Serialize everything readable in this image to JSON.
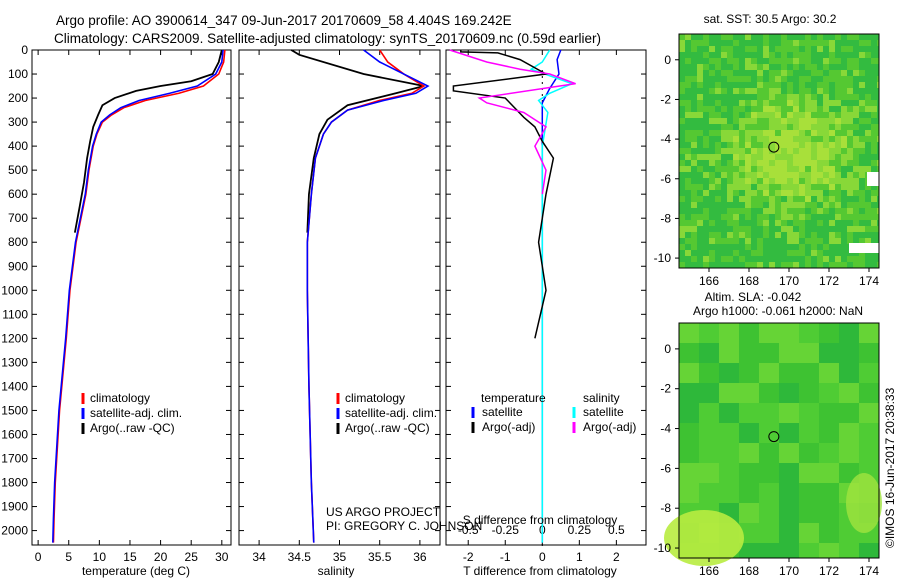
{
  "header": {
    "line1": "Argo profile: AO 3900614_347 09-Jun-2017 20170609_58 4.404S 169.242E",
    "line2": "Climatology: CARS2009. Satellite-adjusted climatology: synTS_20170609.nc (0.59d earlier)"
  },
  "colors": {
    "climatology": "#ff0000",
    "satellite": "#0000ff",
    "argo": "#000000",
    "sat_salinity": "#00ffff",
    "argo_salinity": "#ff00ff"
  },
  "chart_data": [
    {
      "type": "line",
      "name": "temperature-profile",
      "xlabel": "temperature (deg C)",
      "xlim": [
        -1,
        31.5
      ],
      "ylim": [
        2060,
        0
      ],
      "invert_y": true,
      "xticks": [
        "0",
        "5",
        "10",
        "15",
        "20",
        "25",
        "30"
      ],
      "yticks": [
        "0",
        "100",
        "200",
        "300",
        "400",
        "500",
        "600",
        "700",
        "800",
        "900",
        "1000",
        "1100",
        "1200",
        "1300",
        "1400",
        "1500",
        "1600",
        "1700",
        "1800",
        "1900",
        "2000"
      ],
      "legend": [
        "climatology",
        "satellite-adj. clim.",
        "Argo(..raw -QC)"
      ],
      "series": [
        {
          "name": "climatology",
          "x": [
            30.5,
            30.3,
            29.5,
            27,
            23,
            17.5,
            14,
            12,
            10.5,
            9.6,
            9,
            8.3,
            7.8,
            7,
            6.2,
            5.2,
            4.6,
            3.5,
            2.8,
            2.6,
            2.5
          ],
          "y": [
            0,
            50,
            100,
            150,
            180,
            210,
            240,
            270,
            300,
            350,
            400,
            500,
            600,
            700,
            800,
            1000,
            1200,
            1500,
            1800,
            1950,
            2050
          ]
        },
        {
          "name": "satellite-adj. clim.",
          "x": [
            30.2,
            30,
            29,
            26,
            21.5,
            16.5,
            13.5,
            11.7,
            10.3,
            9.5,
            8.9,
            8.2,
            7.7,
            6.9,
            6.1,
            5.1,
            4.5,
            3.4,
            2.7,
            2.5,
            2.4
          ],
          "y": [
            0,
            50,
            100,
            150,
            180,
            210,
            240,
            270,
            300,
            350,
            400,
            500,
            600,
            700,
            800,
            1000,
            1200,
            1500,
            1800,
            1950,
            2050
          ]
        },
        {
          "name": "Argo(..raw -QC)",
          "x": [
            30,
            29.5,
            28.5,
            25,
            20,
            16,
            12.5,
            10.5,
            9.8,
            9,
            8.5,
            8,
            7.5,
            6.8,
            6
          ],
          "y": [
            0,
            50,
            100,
            130,
            150,
            170,
            200,
            230,
            270,
            320,
            380,
            450,
            550,
            650,
            760
          ]
        }
      ]
    },
    {
      "type": "line",
      "name": "salinity-profile",
      "xlabel": "salinity",
      "xlim": [
        33.75,
        36.25
      ],
      "ylim": [
        2060,
        0
      ],
      "invert_y": true,
      "xticks": [
        "34",
        "34.5",
        "35",
        "35.5",
        "36"
      ],
      "legend": [
        "climatology",
        "satellite-adj. clim.",
        "Argo(..raw -QC)"
      ],
      "series": [
        {
          "name": "climatology",
          "x": [
            35.5,
            35.6,
            35.8,
            36.05,
            35.9,
            35.5,
            35.1,
            34.9,
            34.8,
            34.7,
            34.65,
            34.6,
            34.6,
            34.62,
            34.65,
            34.68
          ],
          "y": [
            0,
            50,
            100,
            150,
            180,
            210,
            250,
            300,
            350,
            450,
            600,
            800,
            1000,
            1400,
            1800,
            2050
          ]
        },
        {
          "name": "satellite-adj. clim.",
          "x": [
            35.3,
            35.5,
            35.8,
            36.1,
            35.95,
            35.55,
            35.1,
            34.9,
            34.8,
            34.7,
            34.65,
            34.6,
            34.6,
            34.62,
            34.65,
            34.68
          ],
          "y": [
            0,
            50,
            100,
            150,
            180,
            210,
            250,
            300,
            350,
            450,
            600,
            800,
            1000,
            1400,
            1800,
            2050
          ]
        },
        {
          "name": "Argo(..raw -QC)",
          "x": [
            34.4,
            34.45,
            34.5,
            35.3,
            36.05,
            35.7,
            35.1,
            34.85,
            34.75,
            34.68,
            34.62,
            34.6
          ],
          "y": [
            0,
            10,
            20,
            100,
            150,
            180,
            230,
            290,
            350,
            450,
            600,
            760
          ]
        }
      ]
    },
    {
      "type": "line",
      "name": "difference-profile",
      "xlabel": "T difference from climatology",
      "top_xlabel": "S difference from climatology",
      "xlim": [
        -2.6,
        2.8
      ],
      "ylim": [
        2060,
        0
      ],
      "invert_y": true,
      "xticks": [
        "-2",
        "-1",
        "0",
        "1",
        "2"
      ],
      "top_xticks": [
        "-0.5",
        "-0.25",
        "0",
        "0.25",
        "0.5"
      ],
      "legend_titles": [
        "temperature",
        "salinity"
      ],
      "legend": [
        "satellite",
        "Argo(-adj)",
        "satellite",
        "Argo(-adj)"
      ],
      "series": [
        {
          "name": "satellite",
          "x": [
            0.5,
            0.4,
            0.45,
            0.2,
            0,
            0,
            0,
            0,
            0,
            0,
            0,
            0
          ],
          "y": [
            0,
            40,
            100,
            160,
            220,
            400,
            700,
            1000,
            1400,
            1800,
            2000,
            2050
          ]
        },
        {
          "name": "satellite",
          "x": [
            0.2,
            0,
            -0.3,
            0.8,
            0.2,
            -0.1,
            0.15,
            0,
            0,
            0,
            0,
            0
          ],
          "y": [
            0,
            50,
            80,
            140,
            180,
            210,
            260,
            400,
            800,
            1400,
            1800,
            2050
          ]
        },
        {
          "name": "Argo(-adj)",
          "x": [
            -2.2,
            -2.2,
            -1.2,
            -0.6,
            0.1,
            -2.4,
            -2.4,
            -1,
            -0.5,
            -0.2,
            0,
            0.3,
            0.1,
            -0.1,
            0.1,
            -0.2
          ],
          "y": [
            0,
            8,
            12,
            40,
            100,
            150,
            170,
            200,
            280,
            320,
            380,
            450,
            600,
            800,
            1000,
            1200
          ]
        },
        {
          "name": "Argo(-adj)",
          "x": [
            -2.5,
            -1.5,
            -0.6,
            0.2,
            0.9,
            -1.7,
            -1.5,
            -0.5,
            0.1,
            -0.2,
            0.1,
            0
          ],
          "y": [
            0,
            50,
            80,
            100,
            140,
            200,
            220,
            260,
            320,
            400,
            500,
            600
          ]
        }
      ]
    }
  ],
  "maps": {
    "sst": {
      "title": "sat. SST: 30.5  Argo: 30.2",
      "xticks": [
        "166",
        "168",
        "170",
        "172",
        "174"
      ],
      "yticks": [
        "0",
        "-2",
        "-4",
        "-6",
        "-8",
        "-10"
      ],
      "xlim": [
        164.5,
        174.5
      ],
      "ylim": [
        -10.5,
        1.3
      ]
    },
    "sla": {
      "title1": "Altim. SLA: -0.042",
      "title2": "Argo h1000: -0.061  h2000: NaN",
      "xticks": [
        "166",
        "168",
        "170",
        "172",
        "174"
      ],
      "yticks": [
        "0",
        "-2",
        "-4",
        "-6",
        "-8",
        "-10"
      ],
      "xlim": [
        164.5,
        174.5
      ],
      "ylim": [
        -10.5,
        1.3
      ]
    },
    "argo_position": {
      "lon": 169.242,
      "lat": -4.404
    }
  },
  "annotations": {
    "project": "US ARGO PROJECT",
    "pi": "PI: GREGORY C. JOHNSON",
    "imos": "©IMOS 16-Jun-2017 20:38:33"
  }
}
